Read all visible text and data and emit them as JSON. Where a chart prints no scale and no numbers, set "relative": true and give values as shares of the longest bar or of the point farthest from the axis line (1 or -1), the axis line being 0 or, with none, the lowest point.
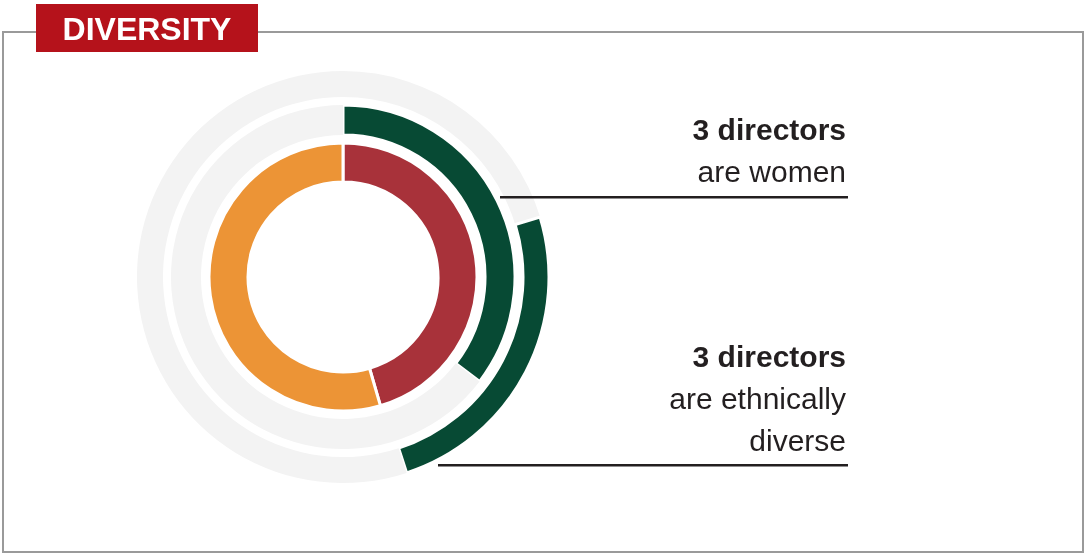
{
  "chart_data": {
    "type": "donut",
    "title": "DIVERSITY",
    "relative": true,
    "series": [
      {
        "values": [
          45.5,
          54.5
        ],
        "colors": [
          "#a8323a",
          "#ec9436"
        ]
      },
      {
        "values": [
          35.4,
          64.6
        ],
        "colors": [
          "#074a34",
          null
        ]
      },
      {
        "values": [
          20.3,
          24.7,
          55
        ],
        "colors": [
          null,
          "#074a34",
          null
        ]
      }
    ],
    "annotations": [
      "3 directors\nare women",
      "3 directors\nare ethnically\ndiverse"
    ]
  }
}
